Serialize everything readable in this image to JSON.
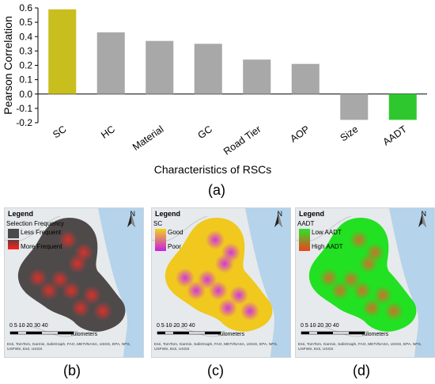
{
  "chart_data": {
    "type": "bar",
    "categories": [
      "SC",
      "HC",
      "Material",
      "GC",
      "Road Tier",
      "AOP",
      "Size",
      "AADT"
    ],
    "values": [
      0.59,
      0.43,
      0.37,
      0.35,
      0.24,
      0.21,
      -0.18,
      -0.18
    ],
    "bar_colors": [
      "#c8be1e",
      "#a8a8a8",
      "#a8a8a8",
      "#a8a8a8",
      "#a8a8a8",
      "#a8a8a8",
      "#a8a8a8",
      "#2ec82e"
    ],
    "xlabel": "Characteristics of RSCs",
    "ylabel": "Pearson Correlation",
    "ylim": [
      -0.2,
      0.6
    ],
    "yticks": [
      "-0.2",
      "-0.1",
      "0.0",
      "0.1",
      "0.2",
      "0.3",
      "0.4",
      "0.5",
      "0.6"
    ],
    "ytick_values": [
      -0.2,
      -0.1,
      0.0,
      0.1,
      0.2,
      0.3,
      0.4,
      0.5,
      0.6
    ],
    "grid": false
  },
  "panel_labels": {
    "a": "(a)",
    "b": "(b)",
    "c": "(c)",
    "d": "(d)"
  },
  "maps": [
    {
      "id": "b",
      "legend_title": "Legend",
      "legend_subtitle": "Selection Frequency",
      "items": [
        {
          "label": "Less Frequent",
          "color": "#4a4a4a"
        },
        {
          "label": "More Frequent",
          "color": "#ff2020"
        }
      ],
      "north": "N",
      "scale_numbers": "0  5 10    20    30    40",
      "scale_unit": "Kilometers",
      "credits": "Esri, TomTom, Garmin, SafeGraph, FAO, METI/NASA, USGS, EPA, NPS, USFWS, Esri, USGS",
      "colors": {
        "base": "#4f4a4a",
        "accent": "#e0302a"
      }
    },
    {
      "id": "c",
      "legend_title": "Legend",
      "legend_subtitle": "SC",
      "items": [
        {
          "label": "Good",
          "color": "#f2d21a"
        },
        {
          "label": "Poor",
          "color": "#c81ee0"
        }
      ],
      "north": "N",
      "scale_numbers": "0  5 10    20    30    40",
      "scale_unit": "Kilometers",
      "credits": "Esri, TomTom, Garmin, SafeGraph, FAO, METI/NASA, USGS, EPA, NPS, USFWS, Esri, USGS",
      "colors": {
        "base": "#f0c81e",
        "accent": "#d02ee8"
      }
    },
    {
      "id": "d",
      "legend_title": "Legend",
      "legend_subtitle": "AADT",
      "items": [
        {
          "label": "Low AADT",
          "color": "#28e628"
        },
        {
          "label": "High AADT",
          "color": "#f04020"
        }
      ],
      "north": "N",
      "scale_numbers": "0  5 10    20    30    40",
      "scale_unit": "Kilometers",
      "credits": "Esri, TomTom, Garmin, SafeGraph, FAO, METI/NASA, USGS, EPA, NPS, USFWS, Esri, USGS",
      "colors": {
        "base": "#22e022",
        "accent": "#d86a2a"
      }
    }
  ]
}
